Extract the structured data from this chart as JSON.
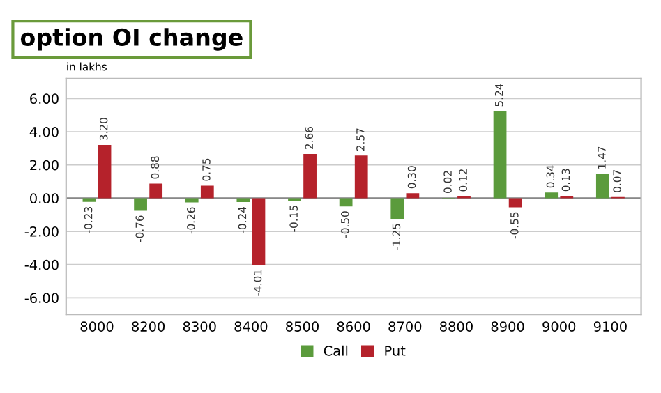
{
  "chart_data": {
    "type": "bar",
    "title": "option OI change",
    "annotations": [
      "in lakhs"
    ],
    "categories": [
      "8000",
      "8200",
      "8300",
      "8400",
      "8500",
      "8600",
      "8700",
      "8800",
      "8900",
      "9000",
      "9100"
    ],
    "series": [
      {
        "name": "Call",
        "color": "#5b9b3c",
        "values": [
          -0.23,
          -0.76,
          -0.26,
          -0.24,
          -0.15,
          -0.5,
          -1.25,
          0.02,
          5.24,
          0.34,
          1.47
        ],
        "value_labels": [
          "-0.23",
          "-0.76",
          "-0.26",
          "-0.24",
          "-0.15",
          "-0.50",
          "-1.25",
          "0.02",
          "5.24",
          "0.34",
          "1.47"
        ]
      },
      {
        "name": "Put",
        "color": "#b5222b",
        "values": [
          3.2,
          0.88,
          0.75,
          -4.01,
          2.66,
          2.57,
          0.3,
          0.12,
          -0.55,
          0.13,
          0.07
        ],
        "value_labels": [
          "3.20",
          "0.88",
          "0.75",
          "-4.01",
          "2.66",
          "2.57",
          "0.30",
          "0.12",
          "-0.55",
          "0.13",
          "0.07"
        ]
      }
    ],
    "ylim": [
      -7,
      7.2
    ],
    "yticks": [
      {
        "value": -6,
        "label": "-6.00"
      },
      {
        "value": -4,
        "label": "-4.00"
      },
      {
        "value": -2,
        "label": "-2.00"
      },
      {
        "value": 0,
        "label": "0.00"
      },
      {
        "value": 2,
        "label": "2.00"
      },
      {
        "value": 4,
        "label": "4.00"
      },
      {
        "value": 6,
        "label": "6.00"
      }
    ],
    "grid": "y",
    "legend": "bottom"
  }
}
